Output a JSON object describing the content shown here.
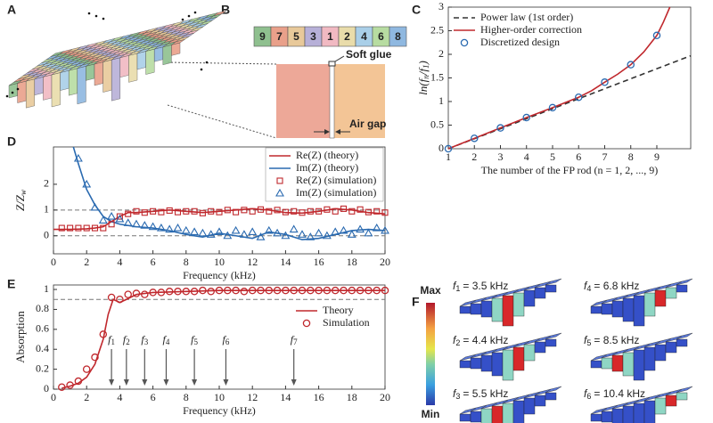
{
  "panels": [
    "A",
    "B",
    "C",
    "D",
    "E",
    "F"
  ],
  "rods": {
    "labels": [
      "9",
      "7",
      "5",
      "3",
      "1",
      "2",
      "4",
      "6",
      "8"
    ],
    "colors": [
      "#8fc08f",
      "#e9a08a",
      "#e8c99a",
      "#b7b0d8",
      "#f1b9c2",
      "#e9dcaa",
      "#a9cfe8",
      "#b7dca1",
      "#8fb8e0"
    ]
  },
  "detail": {
    "glue": "Soft glue",
    "gap": "Air gap"
  },
  "fields": {
    "max": "Max",
    "min": "Min",
    "modes": [
      {
        "symbol": "f",
        "sub": "1",
        "text": "= 3.5 kHz"
      },
      {
        "symbol": "f",
        "sub": "2",
        "text": "= 4.4 kHz"
      },
      {
        "symbol": "f",
        "sub": "3",
        "text": "= 5.5 kHz"
      },
      {
        "symbol": "f",
        "sub": "4",
        "text": "= 6.8 kHz"
      },
      {
        "symbol": "f",
        "sub": "5",
        "text": "= 8.5 kHz"
      },
      {
        "symbol": "f",
        "sub": "6",
        "text": "= 10.4 kHz"
      }
    ]
  },
  "chart_data": [
    {
      "type": "line",
      "xlabel": "The number of the FP rod (n = 1, 2, ..., 9)",
      "ylabel": [
        "ln(f",
        "n",
        "/f",
        "1",
        ")"
      ],
      "xlim": [
        1,
        10.3
      ],
      "ylim": [
        0,
        3
      ],
      "xticks": [
        1,
        2,
        3,
        4,
        5,
        6,
        7,
        8,
        9
      ],
      "yticks": [
        0,
        0.5,
        1,
        1.5,
        2,
        2.5,
        3
      ],
      "legend": "upper left",
      "series": [
        {
          "name": "Power law (1st order)",
          "color": "#333333",
          "style": "dashed",
          "x": [
            1,
            10.3
          ],
          "values": [
            0,
            1.97
          ]
        },
        {
          "name": "Higher-order correction",
          "color": "#c0282d",
          "style": "line",
          "x": [
            1,
            2,
            3,
            4,
            5,
            6,
            6.5,
            7,
            7.5,
            8,
            8.5,
            9,
            9.25,
            9.5
          ],
          "values": [
            0,
            0.22,
            0.44,
            0.66,
            0.87,
            1.09,
            1.23,
            1.41,
            1.58,
            1.78,
            2.05,
            2.4,
            2.68,
            3.0
          ]
        },
        {
          "name": "Discretized design",
          "color": "#2a6ab0",
          "style": "markers",
          "marker": "circle",
          "x": [
            1,
            2,
            3,
            4,
            5,
            6,
            7,
            8,
            9
          ],
          "values": [
            0,
            0.22,
            0.44,
            0.66,
            0.87,
            1.09,
            1.41,
            1.78,
            2.4
          ]
        }
      ]
    },
    {
      "type": "line",
      "xlabel": "Frequency (kHz)",
      "ylabel": [
        "Z/Z",
        "w"
      ],
      "xlim": [
        0,
        20
      ],
      "ylim": [
        -0.7,
        3.45
      ],
      "xticks": [
        0,
        2,
        4,
        6,
        8,
        10,
        12,
        14,
        16,
        18,
        20
      ],
      "yticks": [
        0,
        1,
        2
      ],
      "hlines": [
        0,
        1
      ],
      "legend": "upper right",
      "legend_frame": true,
      "series": [
        {
          "name": "Re(Z) (theory)",
          "color": "#c0282d",
          "style": "line",
          "x": [
            0,
            0.5,
            1,
            1.5,
            2,
            2.5,
            3,
            3.5,
            4,
            4.5,
            5,
            6,
            7,
            8,
            9,
            10,
            11,
            12,
            13,
            14,
            15,
            16,
            17,
            18,
            19,
            20
          ],
          "values": [
            0.25,
            0.25,
            0.25,
            0.26,
            0.27,
            0.3,
            0.35,
            0.55,
            0.75,
            0.9,
            0.9,
            0.95,
            1.0,
            0.95,
            0.9,
            0.95,
            1.0,
            1.05,
            1.0,
            0.9,
            0.88,
            0.95,
            1.05,
            1.0,
            0.9,
            0.85
          ]
        },
        {
          "name": "Im(Z) (theory)",
          "color": "#2a6ab0",
          "style": "line",
          "x": [
            1.2,
            1.5,
            2,
            2.5,
            3,
            3.5,
            4,
            5,
            6,
            7,
            8,
            9,
            10,
            11,
            12,
            13,
            14,
            15,
            16,
            17,
            18,
            19,
            20
          ],
          "values": [
            3.45,
            2.8,
            1.8,
            1.2,
            0.75,
            0.55,
            0.45,
            0.35,
            0.3,
            0.2,
            0.05,
            -0.05,
            0.1,
            0.0,
            -0.1,
            0.15,
            0.05,
            -0.15,
            -0.1,
            0.05,
            0.2,
            0.25,
            0.2
          ]
        },
        {
          "name": "Re(Z) (simulation)",
          "color": "#c0282d",
          "style": "markers",
          "marker": "square",
          "x": [
            0.5,
            1,
            1.5,
            2,
            2.5,
            3,
            3.5,
            4,
            4.5,
            5,
            5.5,
            6,
            6.5,
            7,
            7.5,
            8,
            8.5,
            9,
            9.5,
            10,
            10.5,
            11,
            11.5,
            12,
            12.5,
            13,
            13.5,
            14,
            14.5,
            15,
            15.5,
            16,
            16.5,
            17,
            17.5,
            18,
            18.5,
            19,
            19.5,
            20
          ],
          "values": [
            0.3,
            0.3,
            0.3,
            0.3,
            0.3,
            0.3,
            0.45,
            0.75,
            0.85,
            0.95,
            0.9,
            0.95,
            0.92,
            0.98,
            0.92,
            0.95,
            0.95,
            0.88,
            0.95,
            0.92,
            1.0,
            0.92,
            1.0,
            0.95,
            1.02,
            0.95,
            1.0,
            0.92,
            0.95,
            0.9,
            0.95,
            0.95,
            1.02,
            0.95,
            1.05,
            0.95,
            1.02,
            0.92,
            0.95,
            0.9
          ]
        },
        {
          "name": "Im(Z) (simulation)",
          "color": "#2a6ab0",
          "style": "markers",
          "marker": "triangle",
          "x": [
            0.5,
            1,
            1.5,
            2,
            2.5,
            3,
            3.5,
            4,
            4.5,
            5,
            5.5,
            6,
            6.5,
            7,
            7.5,
            8,
            8.5,
            9,
            9.5,
            10,
            10.5,
            11,
            11.5,
            12,
            12.5,
            13,
            13.5,
            14,
            14.5,
            15,
            15.5,
            16,
            16.5,
            17,
            17.5,
            18,
            18.5,
            19,
            19.5,
            20
          ],
          "values": [
            null,
            null,
            3.0,
            2.0,
            1.1,
            0.6,
            0.75,
            0.65,
            0.5,
            0.45,
            0.4,
            0.35,
            0.3,
            0.25,
            0.3,
            0.2,
            0.15,
            0.1,
            0.05,
            0.15,
            0.0,
            0.2,
            0.05,
            0.15,
            -0.05,
            0.2,
            0.1,
            0.0,
            0.25,
            0.05,
            -0.05,
            0.1,
            0.0,
            0.15,
            0.2,
            0.05,
            0.25,
            0.1,
            0.3,
            0.2
          ]
        }
      ]
    },
    {
      "type": "line",
      "xlabel": "Frequency (kHz)",
      "ylabel": [
        "Absorption"
      ],
      "xlim": [
        0,
        20
      ],
      "ylim": [
        0,
        1.045
      ],
      "xticks": [
        0,
        2,
        4,
        6,
        8,
        10,
        12,
        14,
        16,
        18,
        20
      ],
      "yticks": [
        0,
        0.2,
        0.4,
        0.6,
        0.8,
        1
      ],
      "hlines": [
        0.9
      ],
      "legend": "lower right",
      "annotations": [
        {
          "symbol": "f",
          "sub": "1",
          "x": 3.5
        },
        {
          "symbol": "f",
          "sub": "2",
          "x": 4.4
        },
        {
          "symbol": "f",
          "sub": "3",
          "x": 5.5
        },
        {
          "symbol": "f",
          "sub": "4",
          "x": 6.8
        },
        {
          "symbol": "f",
          "sub": "5",
          "x": 8.5
        },
        {
          "symbol": "f",
          "sub": "6",
          "x": 10.4
        },
        {
          "symbol": "f",
          "sub": "7",
          "x": 14.5
        }
      ],
      "series": [
        {
          "name": "Theory",
          "color": "#c0282d",
          "style": "line",
          "x": [
            0.5,
            1,
            1.5,
            2,
            2.5,
            3,
            3.3,
            3.6,
            4,
            4.4,
            5,
            6,
            8,
            10,
            12,
            14,
            16,
            18,
            20
          ],
          "values": [
            0.01,
            0.03,
            0.06,
            0.12,
            0.25,
            0.5,
            0.75,
            0.9,
            0.87,
            0.9,
            0.95,
            0.97,
            0.98,
            0.99,
            0.99,
            0.99,
            0.99,
            0.99,
            0.99
          ]
        },
        {
          "name": "Simulation",
          "color": "#c0282d",
          "style": "markers",
          "marker": "circle",
          "x": [
            0.5,
            1,
            1.5,
            2,
            2.5,
            3,
            3.5,
            4,
            4.5,
            5,
            5.5,
            6,
            6.5,
            7,
            7.5,
            8,
            8.5,
            9,
            9.5,
            10,
            10.5,
            11,
            11.5,
            12,
            12.5,
            13,
            13.5,
            14,
            14.5,
            15,
            15.5,
            16,
            16.5,
            17,
            17.5,
            18,
            18.5,
            19,
            19.5,
            20
          ],
          "values": [
            0.02,
            0.04,
            0.08,
            0.2,
            0.32,
            0.55,
            0.92,
            0.9,
            0.95,
            0.96,
            0.95,
            0.97,
            0.97,
            0.98,
            0.98,
            0.98,
            0.98,
            0.99,
            0.98,
            0.99,
            0.99,
            0.99,
            0.98,
            0.99,
            0.99,
            0.99,
            0.99,
            0.99,
            0.99,
            0.99,
            0.99,
            0.99,
            0.99,
            0.99,
            0.99,
            0.99,
            0.99,
            0.99,
            0.99,
            0.99
          ]
        }
      ]
    }
  ]
}
